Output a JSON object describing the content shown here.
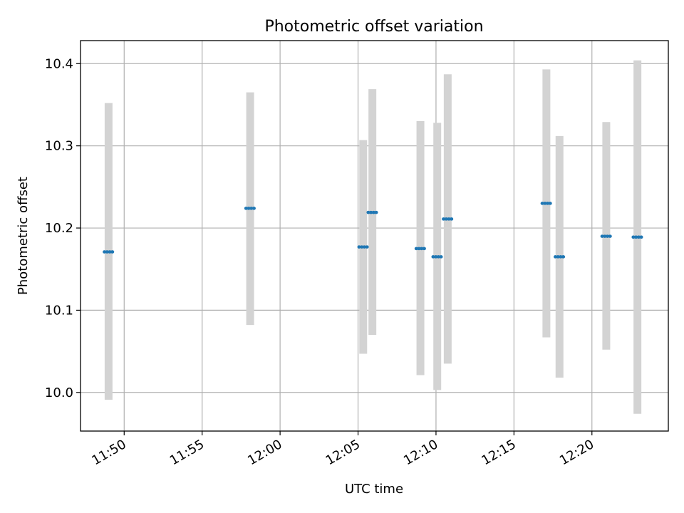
{
  "chart_data": {
    "type": "errorbar",
    "title": "Photometric offset variation",
    "xlabel": "UTC time",
    "ylabel": "Photometric offset",
    "x_tick_labels": [
      "11:50",
      "11:55",
      "12:00",
      "12:05",
      "12:10",
      "12:15",
      "12:20"
    ],
    "x_ticks_minutes": [
      710,
      715,
      720,
      725,
      730,
      735,
      740
    ],
    "y_ticks": [
      10.0,
      10.1,
      10.2,
      10.3,
      10.4
    ],
    "y_tick_labels": [
      "10.0",
      "10.1",
      "10.2",
      "10.3",
      "10.4"
    ],
    "xlim_minutes": [
      707.2,
      744.9
    ],
    "ylim": [
      9.953,
      10.428
    ],
    "grid": true,
    "colors": {
      "point": "#1f77b4",
      "errorbar": "#d3d3d3",
      "grid": "#b0b0b0"
    },
    "points": [
      {
        "time": "11:49:00",
        "minute": 709.0,
        "value": 10.171,
        "low": 9.991,
        "high": 10.352
      },
      {
        "time": "11:58:05",
        "minute": 718.08,
        "value": 10.224,
        "low": 10.082,
        "high": 10.365
      },
      {
        "time": "12:05:20",
        "minute": 725.33,
        "value": 10.177,
        "low": 10.047,
        "high": 10.307
      },
      {
        "time": "12:05:55",
        "minute": 725.92,
        "value": 10.219,
        "low": 10.07,
        "high": 10.369
      },
      {
        "time": "12:09:00",
        "minute": 729.0,
        "value": 10.175,
        "low": 10.021,
        "high": 10.33
      },
      {
        "time": "12:10:05",
        "minute": 730.08,
        "value": 10.165,
        "low": 10.003,
        "high": 10.328
      },
      {
        "time": "12:10:45",
        "minute": 730.75,
        "value": 10.211,
        "low": 10.035,
        "high": 10.387
      },
      {
        "time": "12:17:05",
        "minute": 737.08,
        "value": 10.23,
        "low": 10.067,
        "high": 10.393
      },
      {
        "time": "12:17:55",
        "minute": 737.92,
        "value": 10.165,
        "low": 10.018,
        "high": 10.312
      },
      {
        "time": "12:20:55",
        "minute": 740.92,
        "value": 10.19,
        "low": 10.052,
        "high": 10.329
      },
      {
        "time": "12:22:55",
        "minute": 742.92,
        "value": 10.189,
        "low": 9.974,
        "high": 10.404
      }
    ]
  }
}
